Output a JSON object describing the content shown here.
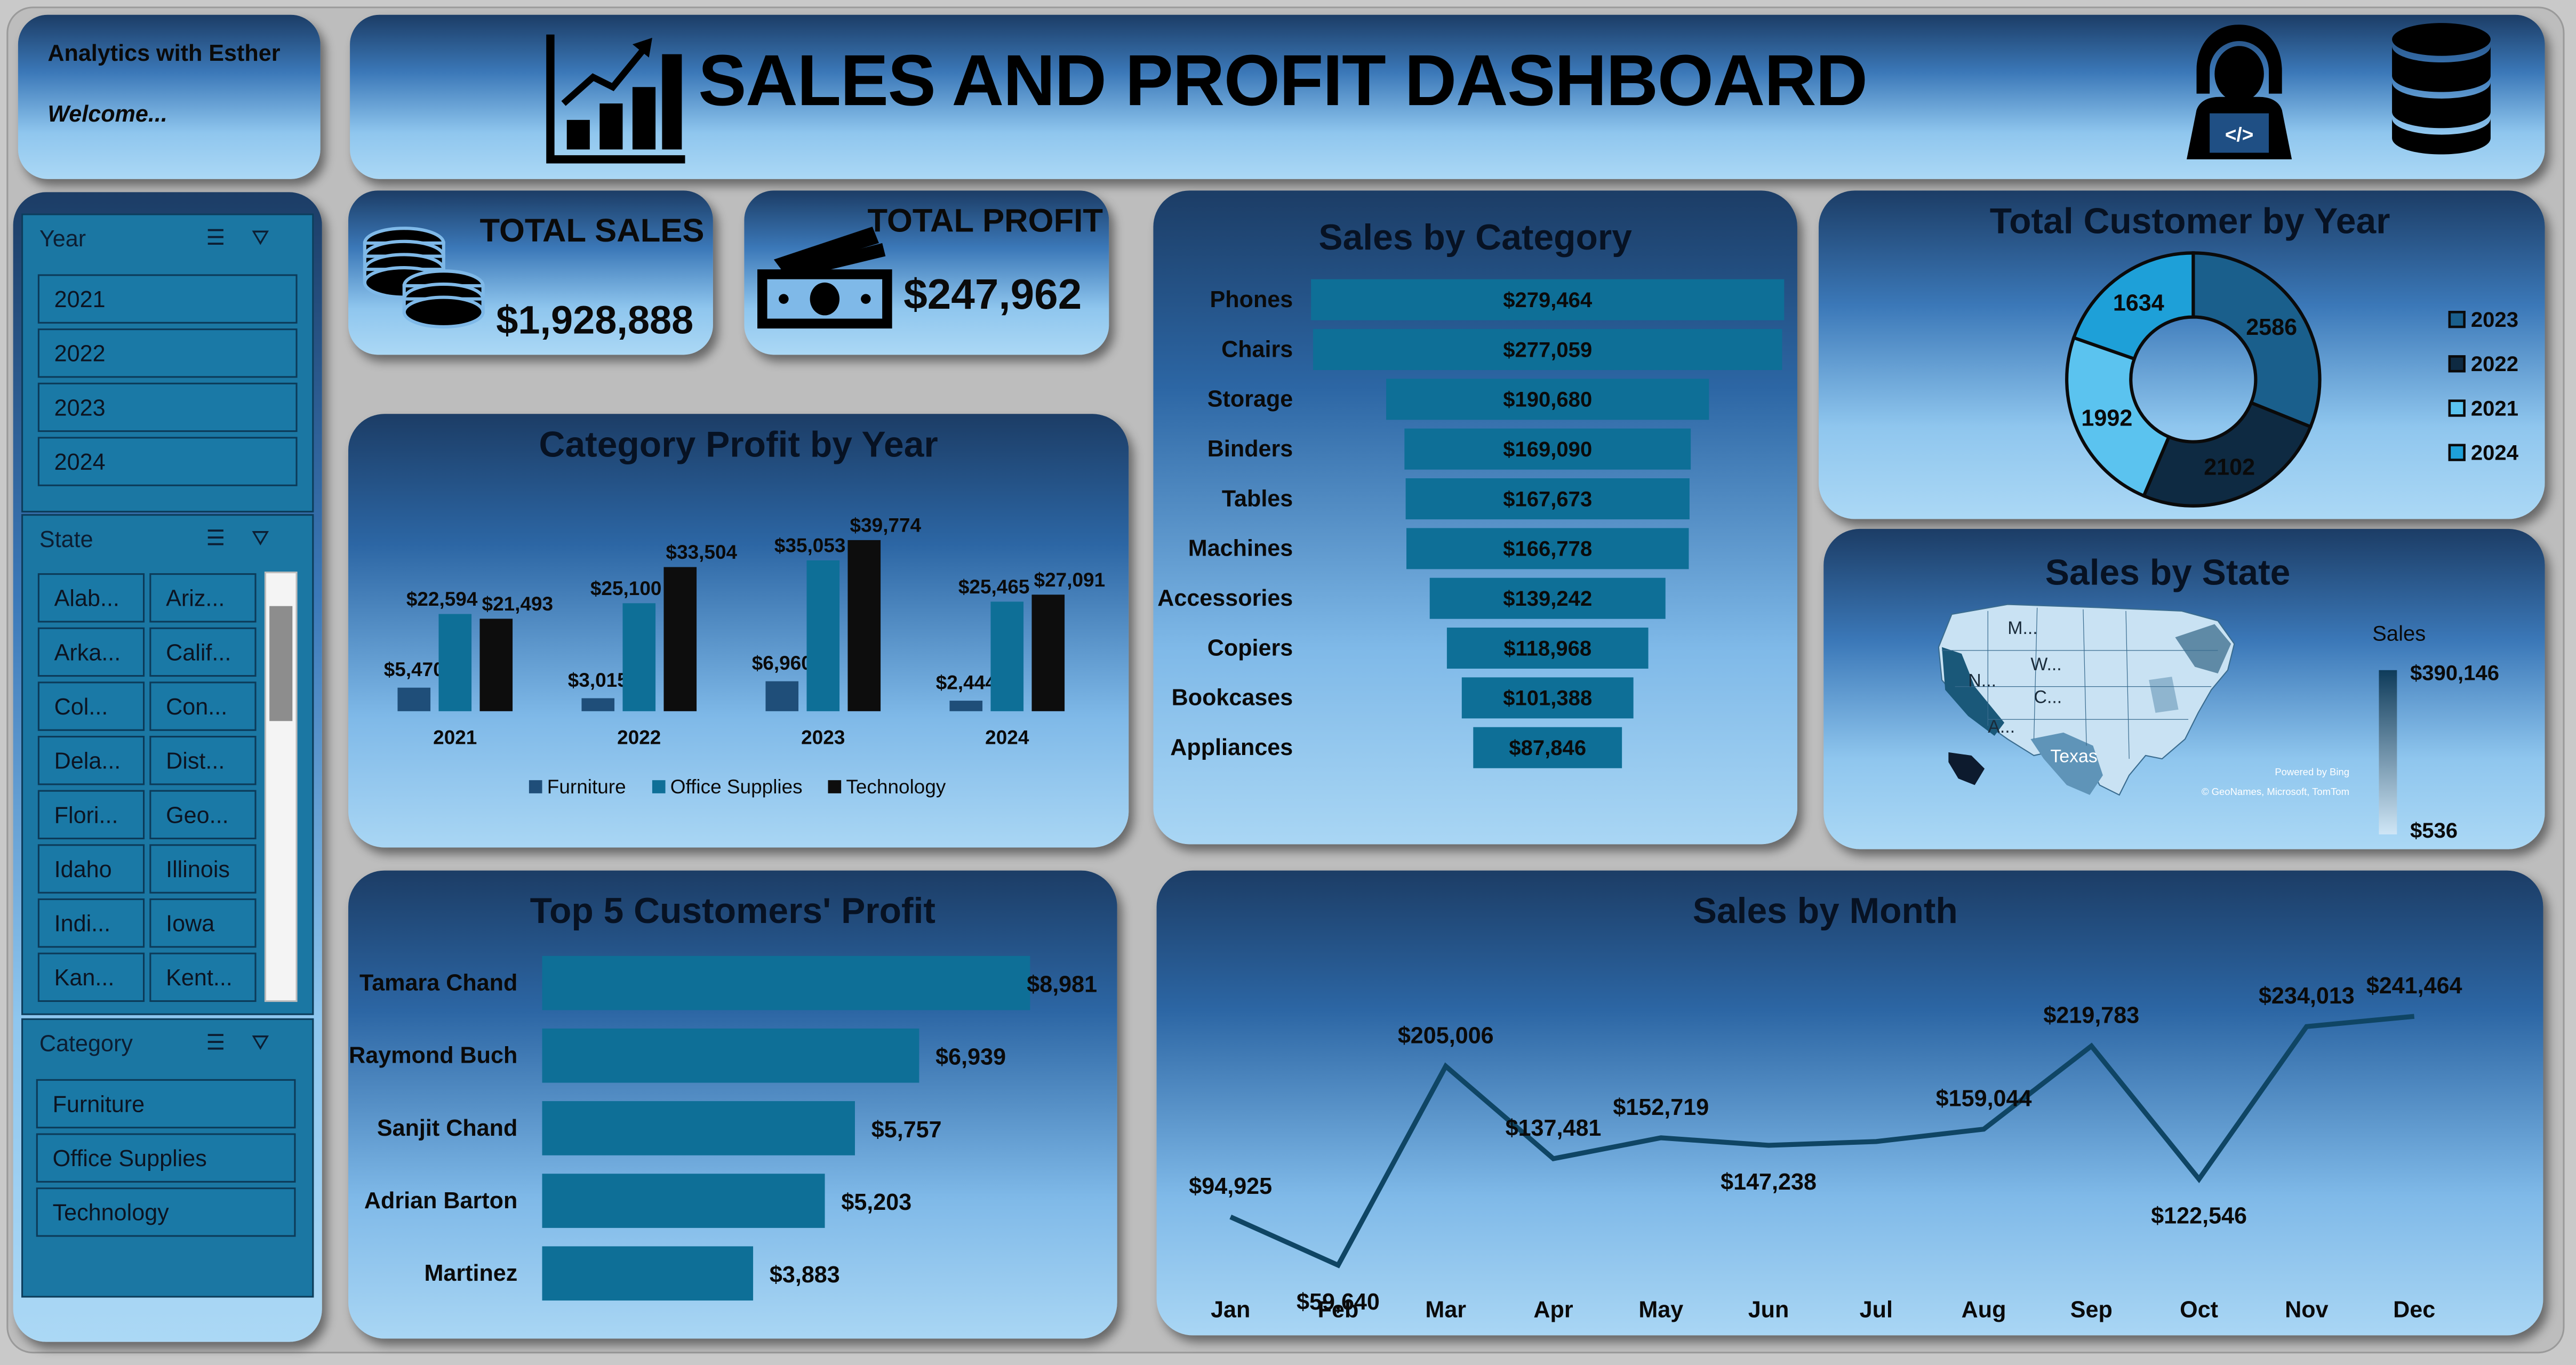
{
  "brand": {
    "name": "Analytics with Esther",
    "welcome": "Welcome..."
  },
  "header": {
    "title": "SALES AND PROFIT DASHBOARD",
    "icons": [
      "bar-chart-growth-icon",
      "developer-laptop-icon",
      "database-icon"
    ]
  },
  "colors": {
    "accent": "#0e6f97",
    "dark": "#0d1b2e",
    "furniture": "#1f4e79",
    "office": "#0e6f97",
    "technology": "#0d0d0d"
  },
  "kpi": {
    "sales": {
      "label": "TOTAL SALES",
      "value": "$1,928,888",
      "icon": "coins-icon"
    },
    "profit": {
      "label": "TOTAL PROFIT",
      "value": "$247,962",
      "icon": "cash-icon"
    }
  },
  "slicers": {
    "year": {
      "title": "Year",
      "items": [
        "2021",
        "2022",
        "2023",
        "2024"
      ]
    },
    "state": {
      "title": "State",
      "items": [
        "Alab...",
        "Ariz...",
        "Arka...",
        "Calif...",
        "Col...",
        "Con...",
        "Dela...",
        "Dist...",
        "Flori...",
        "Geo...",
        "Idaho",
        "Illinois",
        "Indi...",
        "Iowa",
        "Kan...",
        "Kent..."
      ]
    },
    "category": {
      "title": "Category",
      "items": [
        "Furniture",
        "Office Supplies",
        "Technology"
      ]
    }
  },
  "chart_data": [
    {
      "id": "category_profit_by_year",
      "type": "bar",
      "title": "Category Profit by Year",
      "categories": [
        "2021",
        "2022",
        "2023",
        "2024"
      ],
      "series": [
        {
          "name": "Furniture",
          "values": [
            5470,
            3015,
            6960,
            2444
          ],
          "labels": [
            "$5,470",
            "$3,015",
            "$6,960",
            "$2,444"
          ]
        },
        {
          "name": "Office Supplies",
          "values": [
            22594,
            25100,
            35053,
            25465
          ],
          "labels": [
            "$22,594",
            "$25,100",
            "$35,053",
            "$25,465"
          ]
        },
        {
          "name": "Technology",
          "values": [
            21493,
            33504,
            39774,
            27091
          ],
          "labels": [
            "$21,493",
            "$33,504",
            "$39,774",
            "$27,091"
          ]
        }
      ],
      "ylim": [
        0,
        42000
      ],
      "legend": "bottom",
      "grid": false
    },
    {
      "id": "sales_by_category",
      "type": "bar",
      "orientation": "horizontal-funnel",
      "title": "Sales by Category",
      "categories": [
        "Phones",
        "Chairs",
        "Storage",
        "Binders",
        "Tables",
        "Machines",
        "Accessories",
        "Copiers",
        "Bookcases",
        "Appliances"
      ],
      "values": [
        279464,
        277059,
        190680,
        169090,
        167673,
        166778,
        139242,
        118968,
        101388,
        87846
      ],
      "labels": [
        "$279,464",
        "$277,059",
        "$190,680",
        "$169,090",
        "$167,673",
        "$166,778",
        "$139,242",
        "$118,968",
        "$101,388",
        "$87,846"
      ]
    },
    {
      "id": "total_customer_by_year",
      "type": "pie",
      "variant": "donut",
      "title": "Total Customer by Year",
      "categories": [
        "2023",
        "2022",
        "2021",
        "2024"
      ],
      "values": [
        2586,
        2102,
        1992,
        1634
      ],
      "labels": [
        "2586",
        "2102",
        "1992",
        "1634"
      ],
      "legend": "right",
      "colors": [
        "#1a5f8c",
        "#0e2a42",
        "#5bc3ef",
        "#1ea0d8"
      ]
    },
    {
      "id": "sales_by_state",
      "type": "map",
      "title": "Sales by State",
      "legend_title": "Sales",
      "range_labels": [
        "$390,146",
        "$536"
      ],
      "range": [
        536,
        390146
      ],
      "map_labels": [
        "M...",
        "W...",
        "N...",
        "C...",
        "A...",
        "Texas"
      ],
      "credit": [
        "Powered by Bing",
        "© GeoNames, Microsoft, TomTom"
      ]
    },
    {
      "id": "top5_customers_profit",
      "type": "bar",
      "orientation": "horizontal",
      "title": "Top 5 Customers' Profit",
      "categories": [
        "Tamara Chand",
        "Raymond Buch",
        "Sanjit Chand",
        "Adrian Barton",
        "Martinez"
      ],
      "values": [
        8981,
        6939,
        5757,
        5203,
        3883
      ],
      "labels": [
        "$8,981",
        "$6,939",
        "$5,757",
        "$5,203",
        "$3,883"
      ]
    },
    {
      "id": "sales_by_month",
      "type": "line",
      "title": "Sales by Month",
      "categories": [
        "Jan",
        "Feb",
        "Mar",
        "Apr",
        "May",
        "Jun",
        "Jul",
        "Aug",
        "Sep",
        "Oct",
        "Nov",
        "Dec"
      ],
      "values": [
        94925,
        59640,
        205006,
        137481,
        152719,
        147238,
        150000,
        159044,
        219783,
        122546,
        234013,
        241464
      ],
      "labels": [
        "$94,925",
        "$59,640",
        "$205,006",
        "$137,481",
        "$152,719",
        "$147,238",
        "",
        "$159,044",
        "$219,783",
        "$122,546",
        "$234,013",
        "$241,464"
      ],
      "label_pos": [
        "above",
        "below",
        "above",
        "above",
        "above",
        "below",
        "none",
        "above",
        "above",
        "below",
        "above",
        "above"
      ],
      "ylim": [
        30000,
        300000
      ]
    }
  ]
}
